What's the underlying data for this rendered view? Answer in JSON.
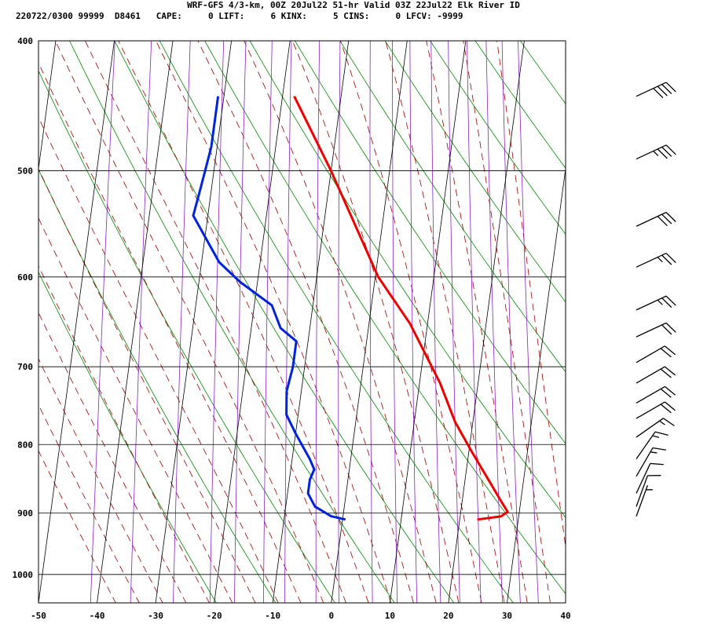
{
  "header": {
    "line1": "WRF-GFS 4/3-km, 00Z 20Jul22 51-hr Valid 03Z 22Jul22 Elk River ID",
    "line2": "220722/0300 99999  D8461   CAPE:     0 LIFT:     6 KINX:     5 CINS:     0 LFCV: -9999"
  },
  "chart_data": {
    "type": "line",
    "title": "",
    "xlabel": "",
    "ylabel": "",
    "xlim": [
      -50,
      40
    ],
    "ylim": [
      1050,
      400
    ],
    "y_scale": "log",
    "x_ticks": [
      -50,
      -40,
      -30,
      -20,
      -10,
      0,
      10,
      20,
      30,
      40
    ],
    "y_ticks": [
      400,
      500,
      600,
      700,
      800,
      900,
      1000
    ],
    "grid": true,
    "colors": {
      "temperature": "#ee0000",
      "dewpoint": "#0022dd",
      "dry_adiabat": "#008800",
      "moist_adiabat": "#990000",
      "mixing_ratio": "#8822bb",
      "grid": "#000000"
    },
    "series": [
      {
        "key": "temperature",
        "points": [
          [
            -18,
            440
          ],
          [
            -10,
            500
          ],
          [
            0.5,
            600
          ],
          [
            7,
            650
          ],
          [
            13.5,
            720
          ],
          [
            17,
            770
          ],
          [
            20.5,
            810
          ],
          [
            24,
            850
          ],
          [
            26.5,
            880
          ],
          [
            28,
            898
          ],
          [
            27,
            905
          ],
          [
            23,
            910
          ]
        ]
      },
      {
        "key": "dewpoint",
        "points": [
          [
            -31,
            440
          ],
          [
            -31,
            460
          ],
          [
            -31,
            480
          ],
          [
            -31.5,
            500
          ],
          [
            -32,
            520
          ],
          [
            -32.5,
            540
          ],
          [
            -30,
            560
          ],
          [
            -27,
            585
          ],
          [
            -23,
            605
          ],
          [
            -17,
            630
          ],
          [
            -15,
            655
          ],
          [
            -12,
            670
          ],
          [
            -12,
            700
          ],
          [
            -12.5,
            730
          ],
          [
            -12,
            760
          ],
          [
            -10,
            785
          ],
          [
            -7,
            820
          ],
          [
            -6,
            835
          ],
          [
            -6.5,
            850
          ],
          [
            -6.5,
            870
          ],
          [
            -5,
            890
          ],
          [
            -2,
            905
          ],
          [
            0.5,
            910
          ]
        ]
      }
    ],
    "wind_barbs": [
      {
        "p": 440,
        "dir": 245,
        "spd": 40
      },
      {
        "p": 490,
        "dir": 245,
        "spd": 35
      },
      {
        "p": 550,
        "dir": 245,
        "spd": 30
      },
      {
        "p": 590,
        "dir": 245,
        "spd": 25
      },
      {
        "p": 635,
        "dir": 245,
        "spd": 25
      },
      {
        "p": 665,
        "dir": 245,
        "spd": 20
      },
      {
        "p": 695,
        "dir": 240,
        "spd": 20
      },
      {
        "p": 720,
        "dir": 240,
        "spd": 20
      },
      {
        "p": 745,
        "dir": 240,
        "spd": 20
      },
      {
        "p": 765,
        "dir": 240,
        "spd": 20
      },
      {
        "p": 790,
        "dir": 235,
        "spd": 15
      },
      {
        "p": 820,
        "dir": 215,
        "spd": 15
      },
      {
        "p": 845,
        "dir": 210,
        "spd": 15
      },
      {
        "p": 870,
        "dir": 205,
        "spd": 10
      },
      {
        "p": 890,
        "dir": 200,
        "spd": 10
      },
      {
        "p": 905,
        "dir": 200,
        "spd": 5
      }
    ]
  }
}
